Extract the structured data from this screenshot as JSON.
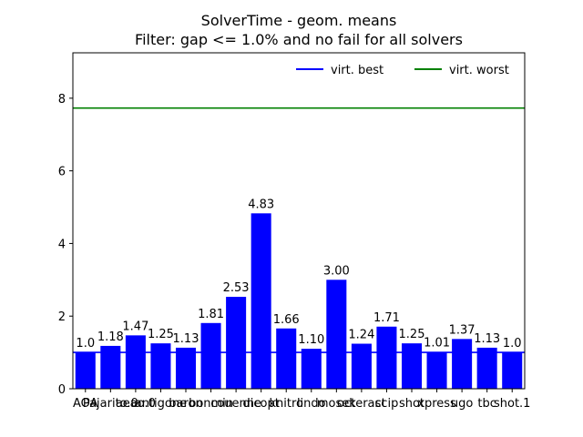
{
  "chart_data": {
    "type": "bar",
    "title": "SolverTime - geom. means",
    "subtitle": "Filter: gap <= 1.0% and no fail for all solvers",
    "xlabel": "",
    "ylabel": "",
    "ylim": [
      0,
      9.25
    ],
    "yticks": [
      0,
      2,
      4,
      6,
      8
    ],
    "categories": [
      "AOA",
      "Pajarito.0",
      "aeao.0",
      "antigone",
      "baron",
      "bonmin",
      "couenne",
      "dicopt",
      "knitro",
      "lindo",
      "mosek",
      "octeract",
      "scip",
      "shot",
      "xpress",
      "ugo",
      "tbc",
      "shot.1"
    ],
    "bar_color": "#0000ff",
    "series": [
      {
        "values": [
          1.0,
          1.18,
          1.47,
          1.25,
          1.13,
          1.81,
          2.53,
          4.83,
          1.66,
          1.1,
          3.0,
          1.24,
          1.71,
          1.25,
          1.01,
          1.37,
          1.13,
          1.0
        ]
      }
    ],
    "data_labels": [
      "1.0",
      "1.18",
      "1.47",
      "1.25",
      "1.13",
      "1.81",
      "2.53",
      "4.83",
      "1.66",
      "1.10",
      "3.00",
      "1.24",
      "1.71",
      "1.25",
      "1.01",
      "1.37",
      "1.13",
      "1.0"
    ],
    "reference_lines": [
      {
        "name": "virt. best",
        "value": 1.0,
        "color": "#0000ff"
      },
      {
        "name": "virt. worst",
        "value": 7.73,
        "color": "#008000"
      }
    ],
    "legend": {
      "placement": "top-right",
      "columns": 2
    },
    "grid": false
  }
}
